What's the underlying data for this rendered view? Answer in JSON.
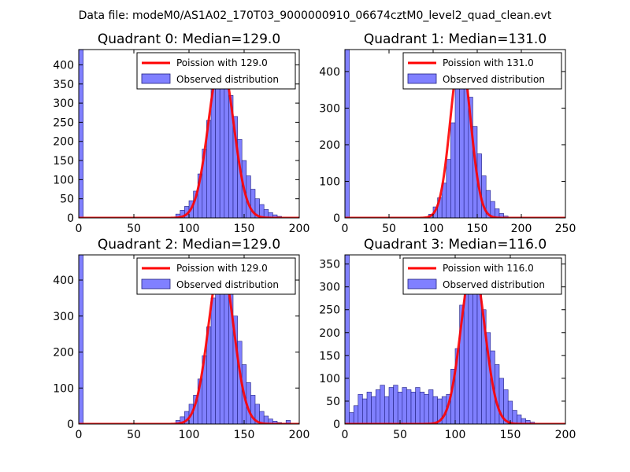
{
  "figure_title": "Data file: modeM0/AS1A02_170T03_9000000910_06674cztM0_level2_quad_clean.evt",
  "colors": {
    "bar_fill": "#8080ff",
    "bar_edge": "#202080",
    "curve": "#ff0000",
    "axis": "#000000"
  },
  "chart_data": [
    {
      "type": "bar",
      "title": "Quadrant 0: Median=129.0",
      "xlim": [
        0,
        200
      ],
      "ylim": [
        0,
        440
      ],
      "xticks": [
        0,
        50,
        100,
        150,
        200
      ],
      "yticks": [
        0,
        50,
        100,
        150,
        200,
        250,
        300,
        350,
        400
      ],
      "bin_width": 4,
      "bins": [
        [
          0,
          440
        ],
        [
          88,
          10
        ],
        [
          92,
          20
        ],
        [
          96,
          30
        ],
        [
          100,
          45
        ],
        [
          104,
          70
        ],
        [
          108,
          115
        ],
        [
          112,
          180
        ],
        [
          116,
          255
        ],
        [
          120,
          340
        ],
        [
          124,
          385
        ],
        [
          128,
          395
        ],
        [
          132,
          370
        ],
        [
          136,
          320
        ],
        [
          140,
          265
        ],
        [
          144,
          205
        ],
        [
          148,
          150
        ],
        [
          152,
          110
        ],
        [
          156,
          75
        ],
        [
          160,
          50
        ],
        [
          164,
          35
        ],
        [
          168,
          22
        ],
        [
          172,
          14
        ],
        [
          176,
          8
        ],
        [
          180,
          4
        ]
      ],
      "fit": {
        "mean": 129.0,
        "peak": 412,
        "label": "Poission with 129.0"
      },
      "legend": {
        "line": "Poission with 129.0",
        "bar": "Observed distribution"
      }
    },
    {
      "type": "bar",
      "title": "Quadrant 1: Median=131.0",
      "xlim": [
        0,
        250
      ],
      "ylim": [
        0,
        460
      ],
      "xticks": [
        0,
        50,
        100,
        150,
        200,
        250
      ],
      "yticks": [
        0,
        100,
        200,
        300,
        400
      ],
      "bin_width": 5,
      "bins": [
        [
          0,
          460
        ],
        [
          95,
          10
        ],
        [
          100,
          30
        ],
        [
          105,
          55
        ],
        [
          110,
          95
        ],
        [
          115,
          160
        ],
        [
          120,
          260
        ],
        [
          125,
          365
        ],
        [
          130,
          420
        ],
        [
          135,
          395
        ],
        [
          140,
          330
        ],
        [
          145,
          250
        ],
        [
          150,
          175
        ],
        [
          155,
          115
        ],
        [
          160,
          75
        ],
        [
          165,
          45
        ],
        [
          170,
          25
        ],
        [
          175,
          12
        ],
        [
          180,
          5
        ]
      ],
      "fit": {
        "mean": 131.0,
        "peak": 445,
        "label": "Poission with 131.0"
      },
      "legend": {
        "line": "Poission with 131.0",
        "bar": "Observed distribution"
      }
    },
    {
      "type": "bar",
      "title": "Quadrant 2: Median=129.0",
      "xlim": [
        0,
        200
      ],
      "ylim": [
        0,
        470
      ],
      "xticks": [
        0,
        50,
        100,
        150,
        200
      ],
      "yticks": [
        0,
        100,
        200,
        300,
        400
      ],
      "bin_width": 4,
      "bins": [
        [
          0,
          470
        ],
        [
          88,
          10
        ],
        [
          92,
          20
        ],
        [
          96,
          35
        ],
        [
          100,
          55
        ],
        [
          104,
          80
        ],
        [
          108,
          125
        ],
        [
          112,
          190
        ],
        [
          116,
          270
        ],
        [
          120,
          350
        ],
        [
          124,
          410
        ],
        [
          128,
          440
        ],
        [
          132,
          420
        ],
        [
          136,
          370
        ],
        [
          140,
          300
        ],
        [
          144,
          230
        ],
        [
          148,
          165
        ],
        [
          152,
          115
        ],
        [
          156,
          80
        ],
        [
          160,
          55
        ],
        [
          164,
          35
        ],
        [
          168,
          22
        ],
        [
          172,
          14
        ],
        [
          176,
          8
        ],
        [
          180,
          4
        ],
        [
          184,
          2
        ],
        [
          188,
          10
        ]
      ],
      "fit": {
        "mean": 129.0,
        "peak": 450,
        "label": "Poission with 129.0"
      },
      "legend": {
        "line": "Poission with 129.0",
        "bar": "Observed distribution"
      }
    },
    {
      "type": "bar",
      "title": "Quadrant 3: Median=116.0",
      "xlim": [
        0,
        200
      ],
      "ylim": [
        0,
        370
      ],
      "xticks": [
        0,
        50,
        100,
        150,
        200
      ],
      "yticks": [
        0,
        50,
        100,
        150,
        200,
        250,
        300,
        350
      ],
      "bin_width": 4,
      "bins": [
        [
          0,
          370
        ],
        [
          4,
          25
        ],
        [
          8,
          40
        ],
        [
          12,
          65
        ],
        [
          16,
          55
        ],
        [
          20,
          70
        ],
        [
          24,
          60
        ],
        [
          28,
          75
        ],
        [
          32,
          85
        ],
        [
          36,
          60
        ],
        [
          40,
          80
        ],
        [
          44,
          85
        ],
        [
          48,
          70
        ],
        [
          52,
          80
        ],
        [
          56,
          75
        ],
        [
          60,
          70
        ],
        [
          64,
          80
        ],
        [
          68,
          70
        ],
        [
          72,
          65
        ],
        [
          76,
          75
        ],
        [
          80,
          60
        ],
        [
          84,
          55
        ],
        [
          88,
          60
        ],
        [
          92,
          65
        ],
        [
          96,
          120
        ],
        [
          100,
          165
        ],
        [
          104,
          260
        ],
        [
          108,
          315
        ],
        [
          112,
          350
        ],
        [
          116,
          330
        ],
        [
          120,
          290
        ],
        [
          124,
          250
        ],
        [
          128,
          200
        ],
        [
          132,
          160
        ],
        [
          136,
          130
        ],
        [
          140,
          100
        ],
        [
          144,
          75
        ],
        [
          148,
          50
        ],
        [
          152,
          30
        ],
        [
          156,
          20
        ],
        [
          160,
          12
        ],
        [
          164,
          8
        ],
        [
          168,
          4
        ]
      ],
      "fit": {
        "mean": 116.0,
        "peak": 350,
        "label": "Poission with 116.0"
      },
      "legend": {
        "line": "Poission with 116.0",
        "bar": "Observed distribution"
      }
    }
  ]
}
